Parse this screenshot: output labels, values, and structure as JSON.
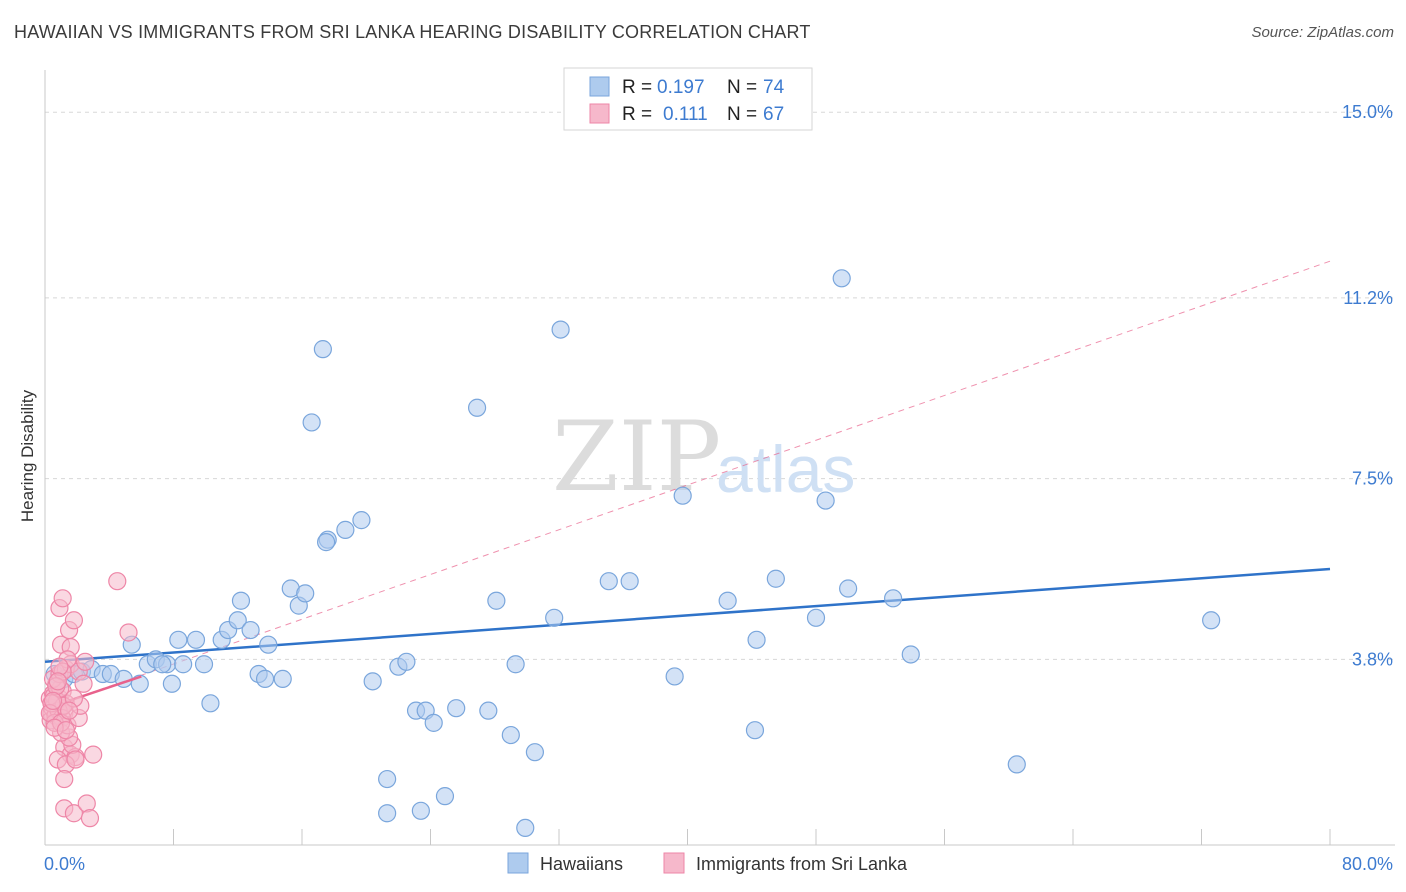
{
  "title": "HAWAIIAN VS IMMIGRANTS FROM SRI LANKA HEARING DISABILITY CORRELATION CHART",
  "source": "Source: ZipAtlas.com",
  "watermark": {
    "zip": "ZIP",
    "atlas": "atlas"
  },
  "colors": {
    "blue_fill": "#aecbee",
    "blue_stroke": "#7aa6dc",
    "blue_line": "#2f73c9",
    "pink_fill": "#f6b8cb",
    "pink_stroke": "#ee86a7",
    "pink_line": "#e8628c",
    "axis_text": "#3d7bd0",
    "grid": "#d8d8d8"
  },
  "legend": {
    "r_label": "R =",
    "n_label": "N =",
    "series": [
      {
        "r": "0.197",
        "n": "74"
      },
      {
        "r": "0.111",
        "n": "67"
      }
    ]
  },
  "chart_data": {
    "type": "scatter",
    "title": "HAWAIIAN VS IMMIGRANTS FROM SRI LANKA HEARING DISABILITY CORRELATION CHART",
    "xlabel": "",
    "ylabel": "Hearing Disability",
    "xlim": [
      0,
      80
    ],
    "ylim": [
      0,
      15.7
    ],
    "x_tick_labels": [
      "0.0%",
      "80.0%"
    ],
    "y_ticks": [
      3.8,
      7.5,
      11.2,
      15.0
    ],
    "y_tick_labels": [
      "3.8%",
      "7.5%",
      "11.2%",
      "15.0%"
    ],
    "series": [
      {
        "name": "Hawaiians",
        "trend": {
          "x": [
            0,
            80
          ],
          "y": [
            3.75,
            5.65
          ],
          "style": "solid"
        },
        "points": [
          [
            0.6,
            3.5
          ],
          [
            1.2,
            3.4
          ],
          [
            1.8,
            3.5
          ],
          [
            2.3,
            3.55
          ],
          [
            2.9,
            3.6
          ],
          [
            3.6,
            3.5
          ],
          [
            4.1,
            3.5
          ],
          [
            4.9,
            3.4
          ],
          [
            5.4,
            4.1
          ],
          [
            5.9,
            3.3
          ],
          [
            6.4,
            3.7
          ],
          [
            6.9,
            3.8
          ],
          [
            7.6,
            3.7
          ],
          [
            7.9,
            3.3
          ],
          [
            8.3,
            4.2
          ],
          [
            8.6,
            3.7
          ],
          [
            9.4,
            4.2
          ],
          [
            9.9,
            3.7
          ],
          [
            10.3,
            2.9
          ],
          [
            11.0,
            4.2
          ],
          [
            11.4,
            4.4
          ],
          [
            12.0,
            4.6
          ],
          [
            12.2,
            5.0
          ],
          [
            12.8,
            4.4
          ],
          [
            13.9,
            4.1
          ],
          [
            13.3,
            3.5
          ],
          [
            13.7,
            3.4
          ],
          [
            14.8,
            3.4
          ],
          [
            15.3,
            5.25
          ],
          [
            15.8,
            4.9
          ],
          [
            16.2,
            5.15
          ],
          [
            16.6,
            8.65
          ],
          [
            17.3,
            10.15
          ],
          [
            17.6,
            6.25
          ],
          [
            18.7,
            6.45
          ],
          [
            19.7,
            6.65
          ],
          [
            20.4,
            3.35
          ],
          [
            21.3,
            1.35
          ],
          [
            21.3,
            0.65
          ],
          [
            22.0,
            3.65
          ],
          [
            22.5,
            3.75
          ],
          [
            23.1,
            2.75
          ],
          [
            23.7,
            2.75
          ],
          [
            24.2,
            2.5
          ],
          [
            24.9,
            1.0
          ],
          [
            25.6,
            2.8
          ],
          [
            26.9,
            8.95
          ],
          [
            27.6,
            2.75
          ],
          [
            28.1,
            5.0
          ],
          [
            29.0,
            2.25
          ],
          [
            29.3,
            3.7
          ],
          [
            29.9,
            0.35
          ],
          [
            30.5,
            1.9
          ],
          [
            31.7,
            4.65
          ],
          [
            32.1,
            10.55
          ],
          [
            35.1,
            5.4
          ],
          [
            36.4,
            5.4
          ],
          [
            39.2,
            3.45
          ],
          [
            39.7,
            7.15
          ],
          [
            42.5,
            5.0
          ],
          [
            44.2,
            2.35
          ],
          [
            44.3,
            4.2
          ],
          [
            45.5,
            5.45
          ],
          [
            48.0,
            4.65
          ],
          [
            48.6,
            7.05
          ],
          [
            49.6,
            11.6
          ],
          [
            50.0,
            5.25
          ],
          [
            52.8,
            5.05
          ],
          [
            53.9,
            3.9
          ],
          [
            60.5,
            1.65
          ],
          [
            72.6,
            4.6
          ],
          [
            23.4,
            0.7
          ],
          [
            17.5,
            6.2
          ],
          [
            7.3,
            3.7
          ]
        ]
      },
      {
        "name": "Immigrants from Sri Lanka",
        "trend": {
          "x": [
            0.1,
            80
          ],
          "y": [
            2.8,
            11.95
          ],
          "style": "dashed"
        },
        "trend_solid": {
          "x": [
            0.1,
            6.0
          ],
          "y": [
            2.8,
            3.45
          ]
        },
        "points": [
          [
            0.3,
            3.0
          ],
          [
            0.4,
            2.7
          ],
          [
            0.5,
            3.1
          ],
          [
            0.6,
            2.85
          ],
          [
            0.7,
            3.3
          ],
          [
            0.8,
            2.6
          ],
          [
            0.9,
            3.0
          ],
          [
            1.0,
            2.8
          ],
          [
            1.1,
            3.15
          ],
          [
            1.2,
            2.7
          ],
          [
            1.3,
            2.9
          ],
          [
            0.35,
            2.55
          ],
          [
            0.45,
            2.8
          ],
          [
            0.55,
            3.05
          ],
          [
            0.65,
            2.65
          ],
          [
            0.75,
            2.95
          ],
          [
            0.85,
            2.75
          ],
          [
            0.95,
            3.2
          ],
          [
            1.05,
            2.6
          ],
          [
            1.15,
            2.85
          ],
          [
            0.5,
            3.4
          ],
          [
            0.9,
            3.5
          ],
          [
            1.3,
            3.6
          ],
          [
            1.6,
            3.7
          ],
          [
            1.0,
            4.1
          ],
          [
            1.5,
            4.4
          ],
          [
            1.8,
            4.6
          ],
          [
            1.6,
            4.05
          ],
          [
            0.9,
            4.85
          ],
          [
            1.1,
            5.05
          ],
          [
            4.5,
            5.4
          ],
          [
            5.2,
            4.35
          ],
          [
            2.1,
            3.55
          ],
          [
            2.5,
            3.75
          ],
          [
            1.4,
            3.8
          ],
          [
            1.2,
            2.0
          ],
          [
            1.6,
            1.85
          ],
          [
            1.9,
            1.8
          ],
          [
            1.7,
            2.05
          ],
          [
            0.8,
            1.75
          ],
          [
            1.3,
            1.65
          ],
          [
            1.5,
            2.2
          ],
          [
            1.2,
            1.35
          ],
          [
            3.0,
            1.85
          ],
          [
            1.2,
            0.75
          ],
          [
            1.8,
            0.65
          ],
          [
            2.6,
            0.85
          ],
          [
            2.8,
            0.55
          ],
          [
            1.0,
            2.3
          ],
          [
            1.4,
            2.45
          ],
          [
            0.6,
            2.5
          ],
          [
            2.1,
            2.6
          ],
          [
            2.2,
            2.85
          ],
          [
            0.4,
            2.9
          ],
          [
            1.8,
            3.0
          ],
          [
            1.1,
            3.55
          ],
          [
            0.7,
            3.25
          ],
          [
            0.3,
            2.7
          ],
          [
            1.0,
            2.5
          ],
          [
            1.5,
            2.75
          ],
          [
            0.6,
            2.4
          ],
          [
            1.9,
            1.75
          ],
          [
            0.9,
            3.65
          ],
          [
            2.4,
            3.3
          ],
          [
            0.5,
            2.95
          ],
          [
            1.3,
            2.35
          ],
          [
            0.8,
            3.35
          ]
        ]
      }
    ]
  },
  "bottom_legend": [
    {
      "label": "Hawaiians"
    },
    {
      "label": "Immigrants from Sri Lanka"
    }
  ]
}
